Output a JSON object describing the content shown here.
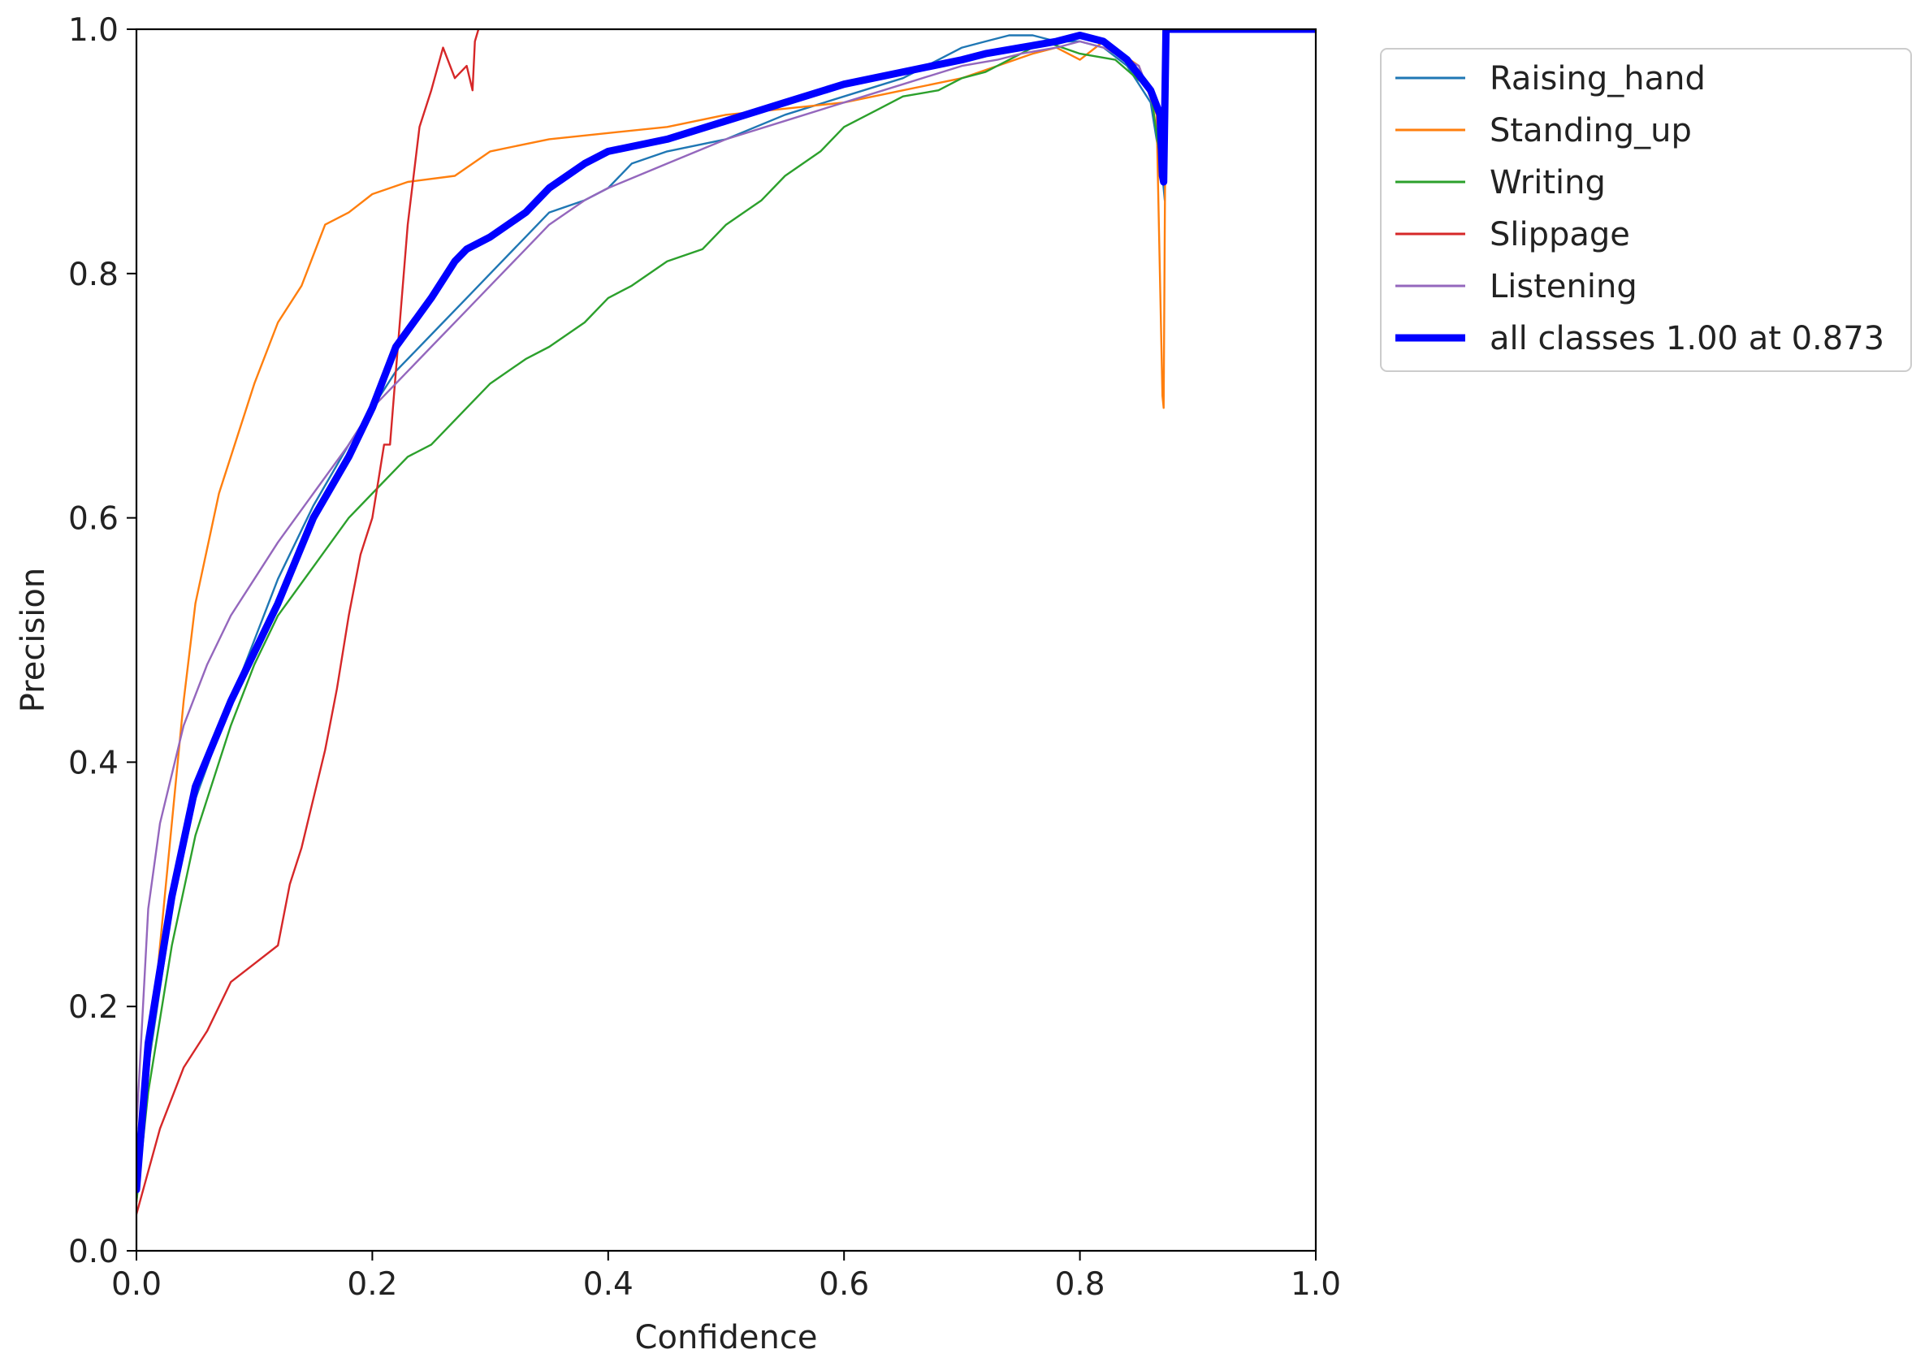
{
  "chart_data": {
    "type": "line",
    "title": "",
    "xlabel": "Confidence",
    "ylabel": "Precision",
    "xlim": [
      0.0,
      1.0
    ],
    "ylim": [
      0.0,
      1.0
    ],
    "xticks": [
      "0.0",
      "0.2",
      "0.4",
      "0.6",
      "0.8",
      "1.0"
    ],
    "yticks": [
      "0.0",
      "0.2",
      "0.4",
      "0.6",
      "0.8",
      "1.0"
    ],
    "grid": false,
    "legend_position": "outside-top-right",
    "series": [
      {
        "name": "Raising_hand",
        "color": "#1f77b4",
        "x": [
          0.0,
          0.01,
          0.03,
          0.05,
          0.08,
          0.1,
          0.12,
          0.15,
          0.18,
          0.2,
          0.22,
          0.25,
          0.28,
          0.3,
          0.33,
          0.35,
          0.38,
          0.4,
          0.42,
          0.45,
          0.5,
          0.55,
          0.6,
          0.65,
          0.68,
          0.7,
          0.72,
          0.74,
          0.76,
          0.78,
          0.8,
          0.82,
          0.84,
          0.86,
          0.87,
          0.872,
          0.873,
          1.0
        ],
        "y": [
          0.05,
          0.15,
          0.28,
          0.37,
          0.45,
          0.5,
          0.55,
          0.61,
          0.66,
          0.69,
          0.72,
          0.75,
          0.78,
          0.8,
          0.83,
          0.85,
          0.86,
          0.87,
          0.89,
          0.9,
          0.91,
          0.93,
          0.945,
          0.96,
          0.975,
          0.985,
          0.99,
          0.995,
          0.995,
          0.99,
          0.99,
          0.985,
          0.97,
          0.94,
          0.88,
          0.86,
          1.0,
          1.0
        ]
      },
      {
        "name": "Standing_up",
        "color": "#ff7f0e",
        "x": [
          0.0,
          0.02,
          0.04,
          0.05,
          0.07,
          0.09,
          0.1,
          0.12,
          0.14,
          0.16,
          0.18,
          0.2,
          0.23,
          0.27,
          0.3,
          0.35,
          0.4,
          0.45,
          0.5,
          0.55,
          0.6,
          0.65,
          0.7,
          0.73,
          0.76,
          0.78,
          0.8,
          0.82,
          0.85,
          0.865,
          0.87,
          0.871,
          0.873,
          1.0
        ],
        "y": [
          0.04,
          0.25,
          0.45,
          0.53,
          0.62,
          0.68,
          0.71,
          0.76,
          0.79,
          0.84,
          0.85,
          0.865,
          0.875,
          0.88,
          0.9,
          0.91,
          0.915,
          0.92,
          0.93,
          0.935,
          0.94,
          0.95,
          0.96,
          0.97,
          0.98,
          0.985,
          0.975,
          0.99,
          0.97,
          0.93,
          0.7,
          0.69,
          1.0,
          1.0
        ]
      },
      {
        "name": "Writing",
        "color": "#2ca02c",
        "x": [
          0.0,
          0.01,
          0.03,
          0.05,
          0.08,
          0.1,
          0.12,
          0.15,
          0.18,
          0.2,
          0.23,
          0.25,
          0.28,
          0.3,
          0.33,
          0.35,
          0.38,
          0.4,
          0.42,
          0.45,
          0.48,
          0.5,
          0.53,
          0.55,
          0.58,
          0.6,
          0.63,
          0.65,
          0.68,
          0.7,
          0.72,
          0.74,
          0.75,
          0.77,
          0.8,
          0.83,
          0.86,
          0.87,
          0.873,
          1.0
        ],
        "y": [
          0.04,
          0.13,
          0.25,
          0.34,
          0.43,
          0.48,
          0.52,
          0.56,
          0.6,
          0.62,
          0.65,
          0.66,
          0.69,
          0.71,
          0.73,
          0.74,
          0.76,
          0.78,
          0.79,
          0.81,
          0.82,
          0.84,
          0.86,
          0.88,
          0.9,
          0.92,
          0.935,
          0.945,
          0.95,
          0.96,
          0.965,
          0.975,
          0.98,
          0.99,
          0.98,
          0.975,
          0.95,
          0.88,
          1.0,
          1.0
        ]
      },
      {
        "name": "Slippage",
        "color": "#d62728",
        "x": [
          0.0,
          0.02,
          0.04,
          0.06,
          0.08,
          0.1,
          0.12,
          0.13,
          0.14,
          0.15,
          0.16,
          0.17,
          0.18,
          0.19,
          0.2,
          0.205,
          0.21,
          0.215,
          0.22,
          0.23,
          0.24,
          0.25,
          0.26,
          0.27,
          0.28,
          0.285,
          0.287,
          0.29
        ],
        "y": [
          0.03,
          0.1,
          0.15,
          0.18,
          0.22,
          0.235,
          0.25,
          0.3,
          0.33,
          0.37,
          0.41,
          0.46,
          0.52,
          0.57,
          0.6,
          0.63,
          0.66,
          0.66,
          0.72,
          0.84,
          0.92,
          0.95,
          0.985,
          0.96,
          0.97,
          0.95,
          0.99,
          1.0
        ]
      },
      {
        "name": "Listening",
        "color": "#9467bd",
        "x": [
          0.0,
          0.01,
          0.02,
          0.04,
          0.06,
          0.08,
          0.1,
          0.12,
          0.15,
          0.18,
          0.2,
          0.23,
          0.25,
          0.28,
          0.3,
          0.33,
          0.35,
          0.38,
          0.4,
          0.45,
          0.5,
          0.55,
          0.6,
          0.65,
          0.7,
          0.73,
          0.75,
          0.78,
          0.8,
          0.82,
          0.85,
          0.87,
          0.873,
          1.0
        ],
        "y": [
          0.1,
          0.28,
          0.35,
          0.43,
          0.48,
          0.52,
          0.55,
          0.58,
          0.62,
          0.66,
          0.69,
          0.72,
          0.74,
          0.77,
          0.79,
          0.82,
          0.84,
          0.86,
          0.87,
          0.89,
          0.91,
          0.925,
          0.94,
          0.955,
          0.97,
          0.975,
          0.98,
          0.985,
          0.99,
          0.985,
          0.97,
          0.92,
          1.0,
          1.0
        ]
      },
      {
        "name": "all classes 1.00 at 0.873",
        "color": "#0000ff",
        "thick": true,
        "x": [
          0.0,
          0.01,
          0.03,
          0.05,
          0.08,
          0.1,
          0.12,
          0.15,
          0.18,
          0.2,
          0.22,
          0.25,
          0.27,
          0.28,
          0.3,
          0.33,
          0.35,
          0.38,
          0.4,
          0.45,
          0.5,
          0.55,
          0.6,
          0.65,
          0.7,
          0.72,
          0.75,
          0.78,
          0.8,
          0.82,
          0.84,
          0.86,
          0.868,
          0.87,
          0.871,
          0.873,
          1.0
        ],
        "y": [
          0.05,
          0.17,
          0.29,
          0.38,
          0.45,
          0.49,
          0.53,
          0.6,
          0.65,
          0.69,
          0.74,
          0.78,
          0.81,
          0.82,
          0.83,
          0.85,
          0.87,
          0.89,
          0.9,
          0.91,
          0.925,
          0.94,
          0.955,
          0.965,
          0.975,
          0.98,
          0.985,
          0.99,
          0.995,
          0.99,
          0.975,
          0.95,
          0.93,
          0.88,
          0.875,
          1.0,
          1.0
        ]
      }
    ]
  }
}
